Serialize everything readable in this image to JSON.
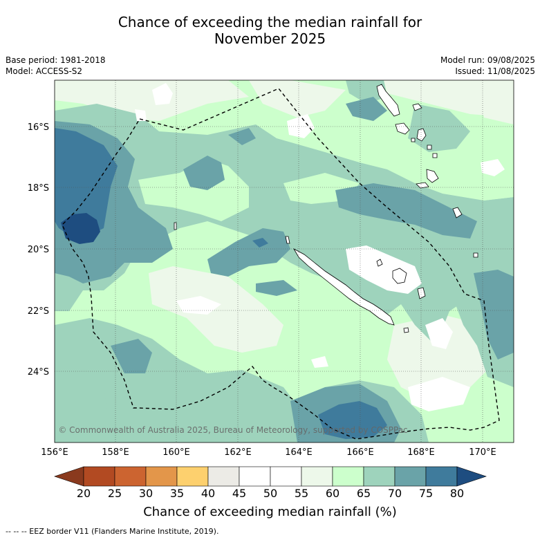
{
  "title": {
    "line1": "Chance of exceeding the median rainfall for",
    "line2": "November 2025"
  },
  "meta": {
    "base_period": "Base period: 1981-2018",
    "model": "Model: ACCESS-S2",
    "model_run": "Model run: 09/08/2025",
    "issued": "Issued: 11/08/2025"
  },
  "map": {
    "lat_labels": [
      "16°S",
      "18°S",
      "20°S",
      "22°S",
      "24°S"
    ],
    "lon_labels": [
      "156°E",
      "158°E",
      "160°E",
      "162°E",
      "164°E",
      "166°E",
      "168°E",
      "170°E"
    ],
    "copyright": "© Commonwealth of Australia 2025, Bureau of Meteorology, supported by COSPPac",
    "eez_legend": "--  --  -- EEZ border V11 (Flanders Marine Institute, 2019)."
  },
  "colorbar": {
    "ticks": [
      "20",
      "25",
      "30",
      "35",
      "40",
      "45",
      "50",
      "55",
      "60",
      "65",
      "70",
      "75",
      "80"
    ],
    "label": "Chance of exceeding median rainfall (%)",
    "colors": [
      "#8a3a1e",
      "#b24a22",
      "#cc6430",
      "#e3964a",
      "#fdd06e",
      "#ecebe6",
      "#ffffff",
      "#ffffff",
      "#edf8ea",
      "#ccffcc",
      "#9ed3bc",
      "#6aa3a8",
      "#3f7b9c",
      "#1e4d80"
    ]
  }
}
